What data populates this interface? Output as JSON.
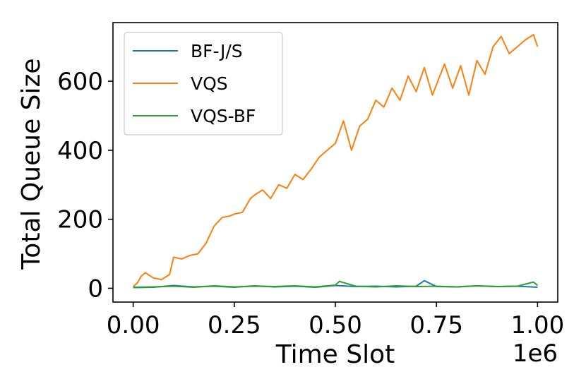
{
  "chart_data": {
    "type": "line",
    "title": "",
    "xlabel": "Time Slot",
    "ylabel": "Total Queue Size",
    "x_offset_label": "1e6",
    "xlim": [
      -0.05,
      1.05
    ],
    "ylim": [
      -40,
      770
    ],
    "x_ticks": [
      0.0,
      0.25,
      0.5,
      0.75,
      1.0
    ],
    "x_tick_labels": [
      "0.00",
      "0.25",
      "0.50",
      "0.75",
      "1.00"
    ],
    "y_ticks": [
      0,
      200,
      400,
      600
    ],
    "y_tick_labels": [
      "0",
      "200",
      "400",
      "600"
    ],
    "grid": false,
    "legend_position": "top-left",
    "series": [
      {
        "name": "BF-J/S",
        "color": "#1f77b4",
        "x": [
          0.0,
          0.05,
          0.1,
          0.15,
          0.2,
          0.25,
          0.3,
          0.35,
          0.4,
          0.45,
          0.5,
          0.55,
          0.6,
          0.65,
          0.7,
          0.72,
          0.75,
          0.8,
          0.85,
          0.9,
          0.95,
          1.0
        ],
        "values": [
          2,
          3,
          8,
          4,
          6,
          3,
          7,
          4,
          6,
          3,
          8,
          5,
          6,
          4,
          6,
          22,
          5,
          4,
          7,
          5,
          6,
          3
        ]
      },
      {
        "name": "VQS",
        "color": "#ff7f0e",
        "x": [
          0.0,
          0.01,
          0.02,
          0.03,
          0.05,
          0.07,
          0.09,
          0.1,
          0.12,
          0.14,
          0.16,
          0.18,
          0.2,
          0.22,
          0.24,
          0.25,
          0.27,
          0.29,
          0.3,
          0.32,
          0.34,
          0.36,
          0.38,
          0.4,
          0.42,
          0.44,
          0.46,
          0.48,
          0.5,
          0.52,
          0.54,
          0.56,
          0.58,
          0.6,
          0.62,
          0.64,
          0.66,
          0.68,
          0.7,
          0.72,
          0.74,
          0.75,
          0.77,
          0.79,
          0.81,
          0.83,
          0.85,
          0.87,
          0.89,
          0.91,
          0.93,
          0.95,
          0.97,
          0.99,
          1.0
        ],
        "values": [
          5,
          15,
          35,
          45,
          30,
          25,
          40,
          90,
          85,
          95,
          100,
          130,
          180,
          205,
          210,
          215,
          220,
          260,
          270,
          285,
          260,
          300,
          290,
          330,
          315,
          345,
          380,
          400,
          420,
          485,
          400,
          470,
          490,
          545,
          525,
          580,
          545,
          615,
          570,
          640,
          560,
          590,
          650,
          580,
          645,
          560,
          660,
          620,
          700,
          730,
          680,
          700,
          720,
          735,
          700
        ]
      },
      {
        "name": "VQS-BF",
        "color": "#2ca02c",
        "x": [
          0.0,
          0.05,
          0.1,
          0.15,
          0.2,
          0.25,
          0.3,
          0.35,
          0.4,
          0.45,
          0.5,
          0.51,
          0.55,
          0.6,
          0.65,
          0.7,
          0.75,
          0.8,
          0.85,
          0.9,
          0.95,
          0.99,
          1.0
        ],
        "values": [
          3,
          4,
          6,
          3,
          7,
          4,
          6,
          5,
          7,
          4,
          9,
          20,
          6,
          4,
          7,
          5,
          6,
          4,
          7,
          5,
          6,
          18,
          8
        ]
      }
    ]
  }
}
